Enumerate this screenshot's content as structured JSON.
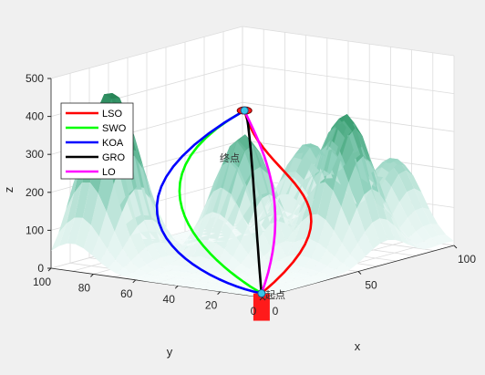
{
  "chart_data": {
    "type": "line",
    "title": "",
    "xlabel": "x",
    "ylabel": "y",
    "zlabel": "z",
    "xlim": [
      0,
      100
    ],
    "ylim": [
      0,
      100
    ],
    "zlim": [
      0,
      500
    ],
    "x_ticks": [
      0,
      50,
      100
    ],
    "y_ticks": [
      0,
      20,
      40,
      60,
      80,
      100
    ],
    "z_ticks": [
      0,
      100,
      200,
      300,
      400,
      500
    ],
    "grid": true,
    "legend_position": "top-left",
    "surface": {
      "colormap": [
        "#f4fbfa",
        "#d9f0ea",
        "#8fd1bd",
        "#3fa377",
        "#1f7a4c"
      ],
      "peaks": [
        {
          "x": 20,
          "y": 90,
          "height": 450
        },
        {
          "x": 45,
          "y": 50,
          "height": 330
        },
        {
          "x": 65,
          "y": 20,
          "height": 380
        },
        {
          "x": 80,
          "y": 35,
          "height": 330
        },
        {
          "x": 85,
          "y": 55,
          "height": 250
        },
        {
          "x": 95,
          "y": 25,
          "height": 220
        }
      ]
    },
    "start": {
      "label": "起点",
      "x": 5,
      "y": 5,
      "z": 0
    },
    "end": {
      "label": "终点",
      "x": 90,
      "y": 90,
      "z": 300
    },
    "series": [
      {
        "name": "LSO",
        "color": "#ff0000"
      },
      {
        "name": "SWO",
        "color": "#00ff00"
      },
      {
        "name": "KOA",
        "color": "#0000ff"
      },
      {
        "name": "GRO",
        "color": "#000000"
      },
      {
        "name": "LO",
        "color": "#ff00ff"
      }
    ]
  }
}
